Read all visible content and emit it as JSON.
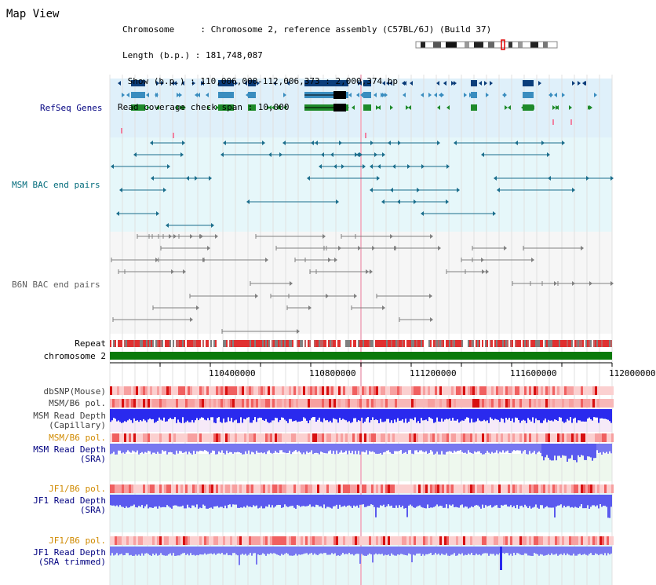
{
  "page": {
    "title": "Map View"
  },
  "info": {
    "chromosome": "Chromosome     : Chromosome 2, reference assembly (C57BL/6J) (Build 37)",
    "length": "Length (b.p.) : 181,748,087",
    "show": " Show (b.p.) : 110,006,000-112,006,373 : 2,000,374 bp",
    "coverage": "Read coverage check span : 10,000"
  },
  "tracks": {
    "refseq": "RefSeq Genes",
    "msm_bac": "MSM BAC end pairs",
    "b6n_bac": "B6N BAC end pairs",
    "repeat": "Repeat",
    "chromosome": "chromosome 2",
    "dbsnp": "dbSNP(Mouse)",
    "msm_b6_pol_1": "MSM/B6 pol.",
    "msm_read_depth_cap_1": "MSM Read Depth",
    "msm_read_depth_cap_2": "(Capillary)",
    "msm_b6_pol_2": "MSM/B6 pol.",
    "msm_read_depth_sra_1": "MSM Read Depth",
    "msm_read_depth_sra_2": "(SRA)",
    "jf1_b6_pol_1": "JF1/B6 pol.",
    "jf1_read_depth_sra_1": "JF1 Read Depth",
    "jf1_read_depth_sra_2": "(SRA)",
    "jf1_b6_pol_2": "JF1/B6 pol.",
    "jf1_read_depth_trim_1": "JF1 Read Depth",
    "jf1_read_depth_trim_2": "(SRA trimmed)"
  },
  "axis": {
    "ticks": [
      "110400000",
      "110800000",
      "111200000",
      "111600000",
      "112000000"
    ]
  },
  "colors": {
    "refseq_dark": "#0b3d7a",
    "refseq_mid": "#3a8dbf",
    "refseq_green": "#1e8a2a",
    "msm_bac": "#1b6e8c",
    "b6n_bac": "#808080",
    "chrom_bar": "#0a7a0a",
    "label_navy": "#000080",
    "label_teal": "#006a7a",
    "label_orange": "#d08a00",
    "depth_blue": "#3a3aff"
  }
}
